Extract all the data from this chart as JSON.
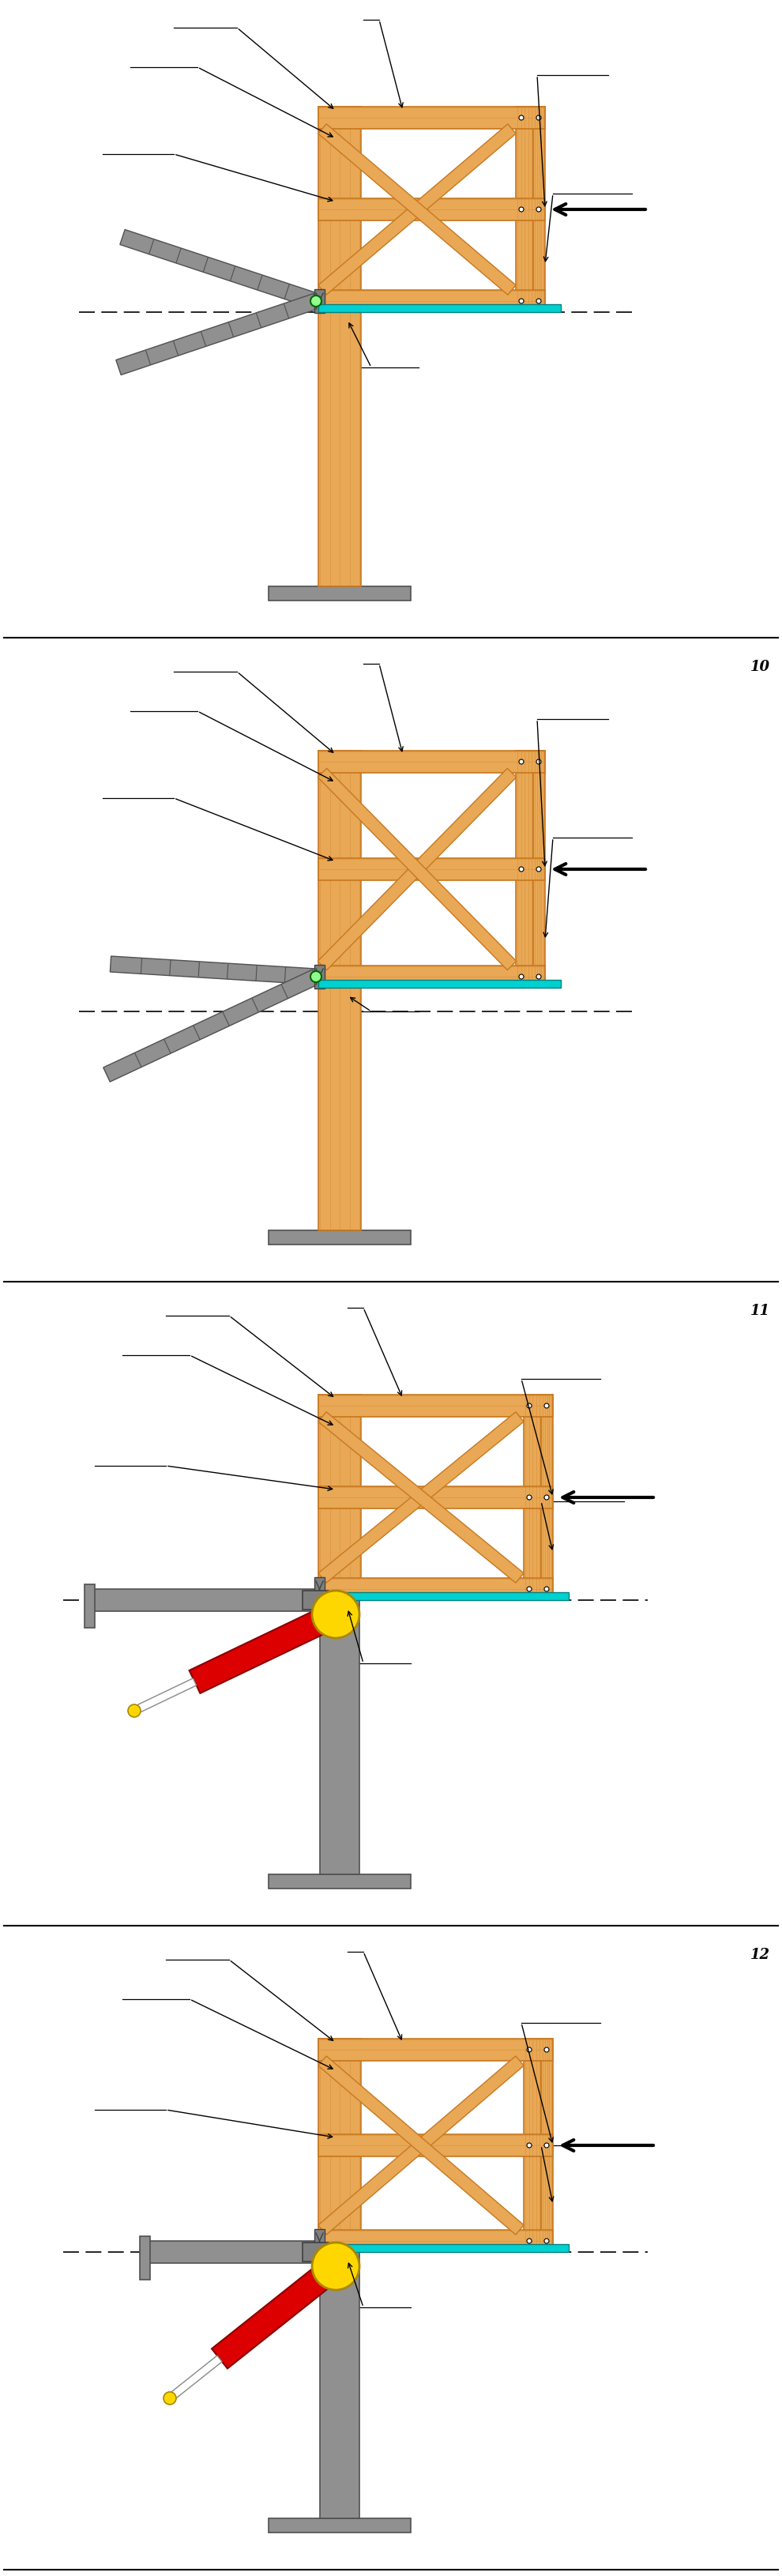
{
  "bg_color": "#ffffff",
  "wood_color": "#E8A855",
  "wood_dark": "#C87820",
  "wood_grain": "#D4913A",
  "steel_color": "#909090",
  "steel_edge": "#505050",
  "cyan_color": "#00D0D0",
  "red_color": "#DD0000",
  "yellow_color": "#FFD700",
  "diagram_numbers": [
    "",
    "10",
    "11",
    "12"
  ],
  "num_diagrams": 4
}
